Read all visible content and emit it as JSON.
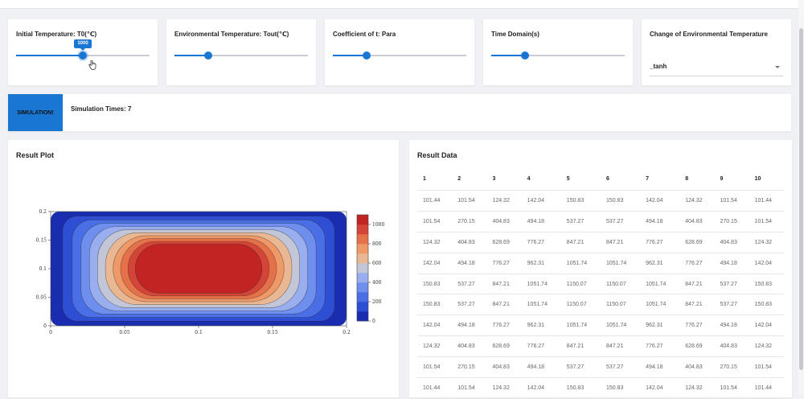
{
  "controls": {
    "t0": {
      "label": "Initial Temperature: T0(℃)",
      "value": "1000",
      "fraction": 0.5
    },
    "tout": {
      "label": "Environmental Temperature: Tout(℃)",
      "fraction": 0.25
    },
    "para": {
      "label": "Coefficient of t: Para",
      "fraction": 0.25
    },
    "time": {
      "label": "Time Domain(s)",
      "fraction": 0.25
    },
    "env_change": {
      "label": "Change of Environmental Temperature",
      "value": "_tanh"
    }
  },
  "simulation": {
    "button_label": "SIMULATION!",
    "times_label": "Simulation Times: 7"
  },
  "plot": {
    "title": "Result Plot",
    "chart_data": {
      "type": "contour",
      "x_ticks": [
        "0",
        "0.05",
        "0.1",
        "0.15",
        "0.2"
      ],
      "y_ticks": [
        "0",
        "0.05",
        "0.1",
        "0.15",
        "0.2"
      ],
      "xlim": [
        0,
        0.2
      ],
      "ylim": [
        0,
        0.2
      ],
      "colorbar_ticks": [
        "0",
        "200",
        "400",
        "600",
        "800",
        "1000"
      ],
      "colorbar_range": [
        0,
        1100
      ],
      "levels": [
        {
          "min": 0,
          "max": 100,
          "color": "#1a2cb0"
        },
        {
          "min": 100,
          "max": 200,
          "color": "#2e4fd4"
        },
        {
          "min": 200,
          "max": 300,
          "color": "#4a6ee6"
        },
        {
          "min": 300,
          "max": 400,
          "color": "#6f8fee"
        },
        {
          "min": 400,
          "max": 500,
          "color": "#99aeee"
        },
        {
          "min": 500,
          "max": 600,
          "color": "#c3c6d6"
        },
        {
          "min": 600,
          "max": 700,
          "color": "#e9b892"
        },
        {
          "min": 700,
          "max": 800,
          "color": "#ef9868"
        },
        {
          "min": 800,
          "max": 900,
          "color": "#e4714a"
        },
        {
          "min": 900,
          "max": 1000,
          "color": "#d44537"
        },
        {
          "min": 1000,
          "max": 1100,
          "color": "#c22424"
        }
      ]
    }
  },
  "data_table": {
    "title": "Result Data",
    "headers": [
      "1",
      "2",
      "3",
      "4",
      "5",
      "6",
      "7",
      "8",
      "9",
      "10"
    ],
    "rows": [
      [
        "101.44",
        "101.54",
        "124.32",
        "142.04",
        "150.83",
        "150.83",
        "142.04",
        "124.32",
        "101.54",
        "101.44"
      ],
      [
        "101.54",
        "270.15",
        "404.83",
        "494.18",
        "537.27",
        "537.27",
        "494.18",
        "404.83",
        "270.15",
        "101.54"
      ],
      [
        "124.32",
        "404.83",
        "628.69",
        "776.27",
        "847.21",
        "847.21",
        "776.27",
        "628.69",
        "404.83",
        "124.32"
      ],
      [
        "142.04",
        "494.18",
        "776.27",
        "962.31",
        "1051.74",
        "1051.74",
        "962.31",
        "776.27",
        "494.18",
        "142.04"
      ],
      [
        "150.83",
        "537.27",
        "847.21",
        "1051.74",
        "1150.07",
        "1150.07",
        "1051.74",
        "847.21",
        "537.27",
        "150.83"
      ],
      [
        "150.83",
        "537.27",
        "847.21",
        "1051.74",
        "1150.07",
        "1150.07",
        "1051.74",
        "847.21",
        "537.27",
        "150.83"
      ],
      [
        "142.04",
        "494.18",
        "776.27",
        "962.31",
        "1051.74",
        "1051.74",
        "962.31",
        "776.27",
        "494.18",
        "142.04"
      ],
      [
        "124.32",
        "404.83",
        "628.69",
        "776.27",
        "847.21",
        "847.21",
        "776.27",
        "628.69",
        "404.83",
        "124.32"
      ],
      [
        "101.54",
        "270.15",
        "404.83",
        "494.18",
        "537.27",
        "537.27",
        "494.18",
        "404.83",
        "270.15",
        "101.54"
      ],
      [
        "101.44",
        "101.54",
        "124.32",
        "142.04",
        "150.83",
        "150.83",
        "142.04",
        "124.32",
        "101.54",
        "101.44"
      ]
    ]
  }
}
